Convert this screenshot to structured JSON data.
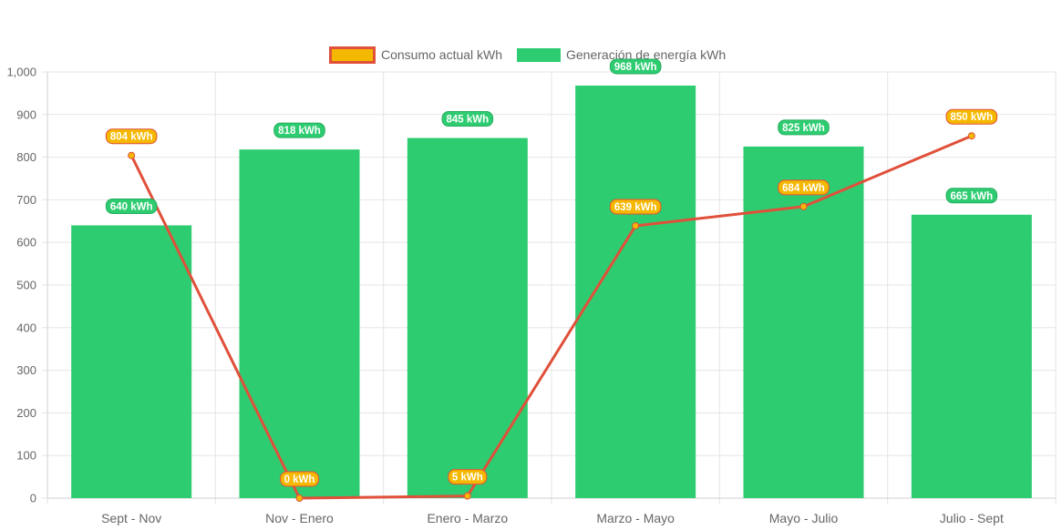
{
  "chart_data": {
    "type": "bar",
    "categories": [
      "Sept - Nov",
      "Nov - Enero",
      "Enero - Marzo",
      "Marzo - Mayo",
      "Mayo - Julio",
      "Julio - Sept"
    ],
    "series": [
      {
        "name": "Consumo actual kWh",
        "type": "line",
        "values": [
          804,
          0,
          5,
          639,
          684,
          850
        ],
        "data_labels": [
          "804 kWh",
          "0 kWh",
          "5 kWh",
          "639 kWh",
          "684 kWh",
          "850 kWh"
        ],
        "line_color": "#e0503a",
        "point_color": "#f5b800",
        "label_bg": "#f5b800",
        "label_border": "#e0503a"
      },
      {
        "name": "Generación de energía kWh",
        "type": "bar",
        "values": [
          640,
          818,
          845,
          968,
          825,
          665
        ],
        "data_labels": [
          "640 kWh",
          "818 kWh",
          "845 kWh",
          "968 kWh",
          "825 kWh",
          "665 kWh"
        ],
        "color": "#2ecc71"
      }
    ],
    "yticks": [
      "0",
      "100",
      "200",
      "300",
      "400",
      "500",
      "600",
      "700",
      "800",
      "900",
      "1,000"
    ],
    "ylim": [
      0,
      1000
    ],
    "grid": true,
    "legend": "top-center"
  }
}
